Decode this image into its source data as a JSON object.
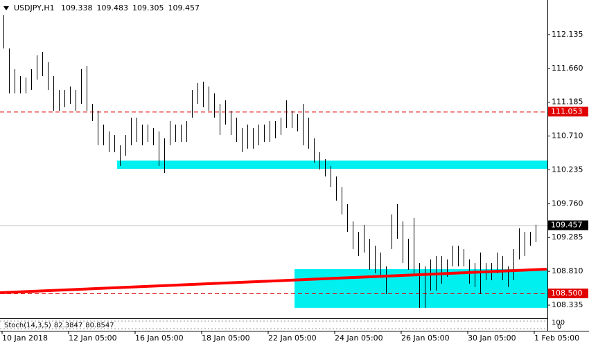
{
  "chart_data": {
    "type": "hlbar",
    "title": "USDJPY,H1",
    "header_values": [
      109.338,
      109.483,
      109.305,
      109.457
    ],
    "color": "#000000",
    "categories": [
      "10 Jan 2018",
      null,
      null,
      null,
      null,
      null,
      null,
      null,
      null,
      null,
      null,
      null,
      "12 Jan 05:00",
      null,
      null,
      null,
      null,
      null,
      null,
      null,
      null,
      null,
      null,
      null,
      "16 Jan 05:00",
      null,
      null,
      null,
      null,
      null,
      null,
      null,
      null,
      null,
      null,
      null,
      "18 Jan 05:00",
      null,
      null,
      null,
      null,
      null,
      null,
      null,
      null,
      null,
      null,
      null,
      "22 Jan 05:00",
      null,
      null,
      null,
      null,
      null,
      null,
      null,
      null,
      null,
      null,
      null,
      "24 Jan 05:00",
      null,
      null,
      null,
      null,
      null,
      null,
      null,
      null,
      null,
      null,
      null,
      "26 Jan 05:00",
      null,
      null,
      null,
      null,
      null,
      null,
      null,
      null,
      null,
      null,
      null,
      "30 Jan 05:00",
      null,
      null,
      null,
      null,
      null,
      null,
      null,
      null,
      null,
      null,
      null,
      "1 Feb 05:00"
    ],
    "high": [
      112.407,
      111.941,
      111.649,
      111.552,
      111.533,
      111.649,
      111.844,
      111.892,
      111.746,
      111.552,
      111.358,
      111.358,
      111.406,
      111.358,
      111.649,
      111.698,
      111.163,
      111.066,
      110.872,
      110.775,
      110.726,
      110.58,
      110.726,
      110.969,
      110.969,
      110.872,
      110.872,
      110.823,
      110.775,
      110.678,
      110.92,
      110.872,
      110.872,
      110.92,
      111.358,
      111.455,
      111.474,
      111.406,
      111.309,
      111.163,
      111.212,
      111.066,
      110.969,
      110.823,
      110.872,
      110.823,
      110.872,
      110.872,
      110.92,
      110.92,
      110.969,
      111.212,
      111.066,
      111.018,
      111.163,
      110.969,
      110.678,
      110.483,
      110.386,
      110.289,
      110.143,
      109.997,
      109.754,
      109.511,
      109.365,
      109.463,
      109.268,
      109.171,
      109.074,
      108.88,
      109.609,
      109.754,
      109.511,
      109.268,
      109.56,
      108.928,
      108.88,
      108.977,
      109.025,
      109.025,
      108.977,
      109.171,
      109.171,
      109.122,
      108.977,
      108.928,
      109.074,
      108.928,
      108.928,
      109.074,
      109.025,
      108.88,
      109.122,
      109.414,
      109.365,
      109.365,
      109.463
    ],
    "low": [
      111.941,
      111.309,
      111.309,
      111.309,
      111.309,
      111.358,
      111.503,
      111.552,
      111.358,
      111.066,
      111.066,
      111.115,
      111.163,
      111.066,
      111.163,
      111.066,
      110.92,
      110.58,
      110.58,
      110.483,
      110.483,
      110.289,
      110.434,
      110.58,
      110.629,
      110.58,
      110.629,
      110.58,
      110.289,
      110.192,
      110.58,
      110.629,
      110.629,
      110.629,
      110.969,
      111.163,
      111.115,
      111.066,
      110.969,
      110.726,
      110.872,
      110.726,
      110.629,
      110.483,
      110.532,
      110.532,
      110.58,
      110.629,
      110.629,
      110.678,
      110.726,
      110.823,
      110.823,
      110.775,
      110.58,
      110.532,
      110.337,
      110.24,
      110.143,
      109.997,
      109.803,
      109.609,
      109.365,
      109.122,
      109.025,
      109.074,
      108.831,
      108.782,
      108.734,
      108.491,
      109.122,
      109.268,
      108.928,
      108.831,
      108.782,
      108.297,
      108.297,
      108.539,
      108.539,
      108.637,
      108.734,
      108.88,
      108.88,
      108.88,
      108.637,
      108.588,
      108.491,
      108.685,
      108.685,
      108.782,
      108.685,
      108.588,
      108.685,
      108.977,
      109.025,
      109.171,
      109.22
    ],
    "ylim": [
      108.15,
      112.621
    ],
    "yticks": [
      112.135,
      {
        "value": 111.66,
        "label": "111.660"
      },
      111.185,
      {
        "value": 110.71,
        "label": "110.710"
      },
      110.235,
      {
        "value": 109.76,
        "label": "109.760"
      },
      109.285,
      {
        "value": 108.81,
        "label": "108.810"
      },
      108.335
    ],
    "levels": [
      {
        "value": 111.053,
        "label": "111.053",
        "color": "#e00000",
        "style": "dashed"
      },
      {
        "value": 109.457,
        "label": "109.457",
        "color": "#000000",
        "style": "solid"
      },
      {
        "value": 108.5,
        "label": "108.500",
        "color": "#e00000",
        "style": "dashed"
      }
    ],
    "zones": [
      {
        "start": 21,
        "top": 110.366,
        "bottom": 110.25,
        "color": "#00f0f0"
      },
      {
        "start": 53,
        "top": 108.841,
        "bottom": 108.297,
        "color": "#00f0f0"
      }
    ],
    "trendline": {
      "start": 0,
      "start_value": 108.51,
      "end": 98,
      "end_value": 108.84,
      "color": "#ff0000"
    },
    "indicator": {
      "name": "Stoch(14,3,5)",
      "values": [
        82.3847,
        80.8547
      ],
      "yticks": [
        100,
        0
      ]
    }
  }
}
